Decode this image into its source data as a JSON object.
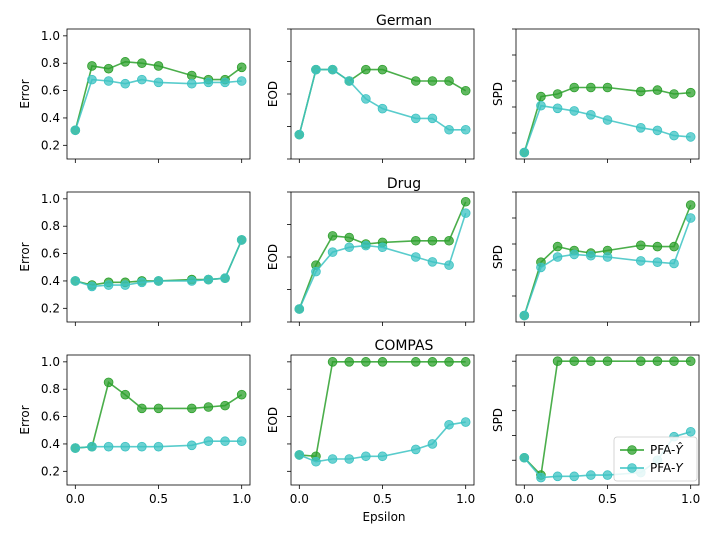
{
  "chart_data": {
    "type": "line",
    "xlabel": "Epsilon",
    "x": [
      0.0,
      0.1,
      0.2,
      0.3,
      0.4,
      0.5,
      0.7,
      0.8,
      0.9,
      1.0
    ],
    "xticks": [
      "0.0",
      "0.5",
      "1.0"
    ],
    "colors": {
      "pfa_yhat": "#2ca02c",
      "pfa_y": "#3cc3c3"
    },
    "legend": {
      "placement": "bottom-right",
      "entries": [
        {
          "key": "pfa_yhat",
          "label_prefix": "PFA-",
          "label_var": "Ŷ"
        },
        {
          "key": "pfa_y",
          "label_prefix": "PFA-",
          "label_var": "Y"
        }
      ]
    },
    "rows": [
      {
        "title": "German",
        "panels": [
          {
            "ylabel": "Error",
            "ylim": [
              0.1,
              1.05
            ],
            "yticks": [
              "0.2",
              "0.4",
              "0.6",
              "0.8",
              "1.0"
            ],
            "series": [
              {
                "key": "pfa_yhat",
                "values": [
                  0.31,
                  0.78,
                  0.76,
                  0.81,
                  0.8,
                  0.78,
                  0.71,
                  0.68,
                  0.68,
                  0.77
                ]
              },
              {
                "key": "pfa_y",
                "values": [
                  0.31,
                  0.68,
                  0.67,
                  0.65,
                  0.68,
                  0.66,
                  0.65,
                  0.66,
                  0.66,
                  0.67
                ]
              }
            ]
          },
          {
            "ylabel": "EOD",
            "ylim": [
              0.2,
              1.0
            ],
            "yticks": [],
            "series": [
              {
                "key": "pfa_yhat",
                "values": [
                  0.35,
                  0.75,
                  0.75,
                  0.68,
                  0.75,
                  0.75,
                  0.68,
                  0.68,
                  0.68,
                  0.62
                ]
              },
              {
                "key": "pfa_y",
                "values": [
                  0.35,
                  0.75,
                  0.75,
                  0.68,
                  0.57,
                  0.51,
                  0.45,
                  0.45,
                  0.38,
                  0.38
                ]
              }
            ]
          },
          {
            "ylabel": "SPD",
            "ylim": [
              0.0,
              1.0
            ],
            "yticks": [],
            "series": [
              {
                "key": "pfa_yhat",
                "values": [
                  0.05,
                  0.48,
                  0.5,
                  0.55,
                  0.55,
                  0.55,
                  0.52,
                  0.53,
                  0.5,
                  0.51
                ]
              },
              {
                "key": "pfa_y",
                "values": [
                  0.05,
                  0.41,
                  0.39,
                  0.37,
                  0.34,
                  0.3,
                  0.24,
                  0.22,
                  0.18,
                  0.17
                ]
              }
            ]
          }
        ]
      },
      {
        "title": "Drug",
        "panels": [
          {
            "ylabel": "Error",
            "ylim": [
              0.1,
              1.05
            ],
            "yticks": [
              "0.2",
              "0.4",
              "0.6",
              "0.8",
              "1.0"
            ],
            "series": [
              {
                "key": "pfa_yhat",
                "values": [
                  0.4,
                  0.37,
                  0.39,
                  0.39,
                  0.4,
                  0.4,
                  0.41,
                  0.41,
                  0.42,
                  0.7
                ]
              },
              {
                "key": "pfa_y",
                "values": [
                  0.4,
                  0.36,
                  0.37,
                  0.37,
                  0.39,
                  0.4,
                  0.4,
                  0.41,
                  0.42,
                  0.7
                ]
              }
            ]
          },
          {
            "ylabel": "EOD",
            "ylim": [
              0.2,
              1.0
            ],
            "yticks": [],
            "series": [
              {
                "key": "pfa_yhat",
                "values": [
                  0.28,
                  0.55,
                  0.73,
                  0.72,
                  0.68,
                  0.69,
                  0.7,
                  0.7,
                  0.7,
                  0.94
                ]
              },
              {
                "key": "pfa_y",
                "values": [
                  0.28,
                  0.51,
                  0.63,
                  0.66,
                  0.67,
                  0.66,
                  0.6,
                  0.57,
                  0.55,
                  0.87
                ]
              }
            ]
          },
          {
            "ylabel": "SPD",
            "ylim": [
              0.0,
              1.0
            ],
            "yticks": [],
            "series": [
              {
                "key": "pfa_yhat",
                "values": [
                  0.05,
                  0.46,
                  0.58,
                  0.55,
                  0.53,
                  0.55,
                  0.59,
                  0.58,
                  0.58,
                  0.9
                ]
              },
              {
                "key": "pfa_y",
                "values": [
                  0.05,
                  0.42,
                  0.5,
                  0.52,
                  0.51,
                  0.5,
                  0.47,
                  0.46,
                  0.45,
                  0.8
                ]
              }
            ]
          }
        ]
      },
      {
        "title": "COMPAS",
        "panels": [
          {
            "ylabel": "Error",
            "ylim": [
              0.1,
              1.05
            ],
            "yticks": [
              "0.2",
              "0.4",
              "0.6",
              "0.8",
              "1.0"
            ],
            "series": [
              {
                "key": "pfa_yhat",
                "values": [
                  0.37,
                  0.38,
                  0.85,
                  0.76,
                  0.66,
                  0.66,
                  0.66,
                  0.67,
                  0.68,
                  0.76
                ]
              },
              {
                "key": "pfa_y",
                "values": [
                  0.37,
                  0.38,
                  0.38,
                  0.38,
                  0.38,
                  0.38,
                  0.39,
                  0.42,
                  0.42,
                  0.42
                ]
              }
            ]
          },
          {
            "ylabel": "EOD",
            "ylim": [
              0.1,
              1.05
            ],
            "yticks": [],
            "series": [
              {
                "key": "pfa_yhat",
                "values": [
                  0.32,
                  0.31,
                  1.0,
                  1.0,
                  1.0,
                  1.0,
                  1.0,
                  1.0,
                  1.0,
                  1.0
                ]
              },
              {
                "key": "pfa_y",
                "values": [
                  0.32,
                  0.27,
                  0.29,
                  0.29,
                  0.31,
                  0.31,
                  0.36,
                  0.4,
                  0.54,
                  0.56
                ]
              }
            ]
          },
          {
            "ylabel": "SPD",
            "ylim": [
              0.0,
              1.05
            ],
            "yticks": [],
            "series": [
              {
                "key": "pfa_yhat",
                "values": [
                  0.22,
                  0.08,
                  1.0,
                  1.0,
                  1.0,
                  1.0,
                  1.0,
                  1.0,
                  1.0,
                  1.0
                ]
              },
              {
                "key": "pfa_y",
                "values": [
                  0.22,
                  0.06,
                  0.07,
                  0.07,
                  0.08,
                  0.08,
                  0.1,
                  0.2,
                  0.39,
                  0.43
                ]
              }
            ]
          }
        ]
      }
    ]
  }
}
